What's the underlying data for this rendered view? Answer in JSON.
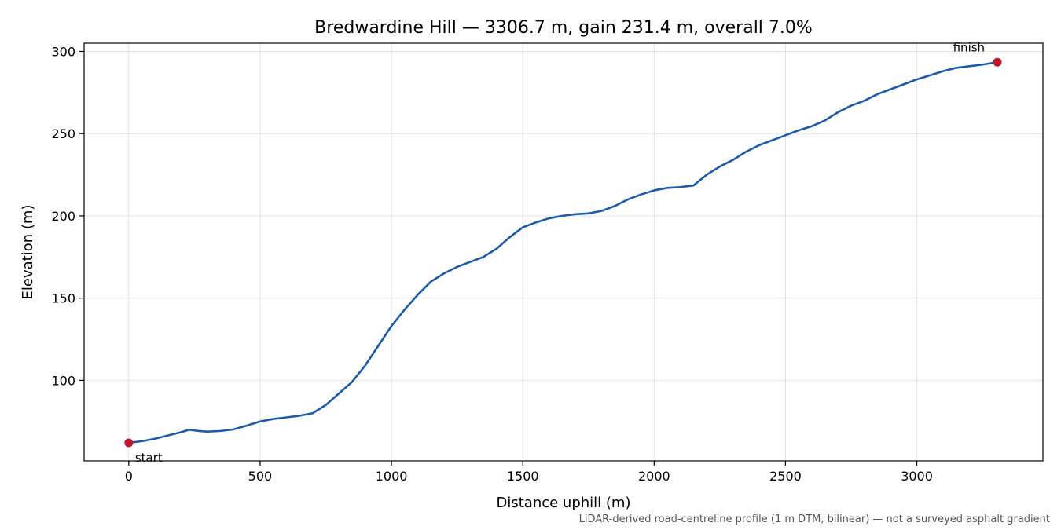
{
  "chart_data": {
    "type": "line",
    "title": "Bredwardine Hill — 3306.7 m, gain 231.4 m, overall 7.0%",
    "xlabel": "Distance uphill (m)",
    "ylabel": "Elevation (m)",
    "xlim": [
      -170,
      3480
    ],
    "ylim": [
      51,
      305
    ],
    "xticks": [
      0,
      500,
      1000,
      1500,
      2000,
      2500,
      3000
    ],
    "yticks": [
      100,
      150,
      200,
      250,
      300
    ],
    "grid": true,
    "line_color": "#1f5aa8",
    "marker_color": "#c0192b",
    "note": "LiDAR-derived road-centreline profile (1 m DTM, bilinear) — not a surveyed asphalt gradient",
    "series": [
      {
        "x": [
          0,
          50,
          100,
          150,
          200,
          230,
          250,
          280,
          300,
          350,
          400,
          450,
          500,
          550,
          600,
          650,
          700,
          750,
          800,
          850,
          900,
          950,
          1000,
          1050,
          1100,
          1150,
          1200,
          1250,
          1300,
          1350,
          1400,
          1450,
          1500,
          1550,
          1600,
          1650,
          1700,
          1750,
          1800,
          1850,
          1900,
          1950,
          2000,
          2050,
          2100,
          2150,
          2200,
          2250,
          2300,
          2350,
          2400,
          2450,
          2500,
          2550,
          2600,
          2650,
          2700,
          2750,
          2800,
          2850,
          2900,
          2950,
          3000,
          3050,
          3100,
          3150,
          3200,
          3250,
          3306.7
        ],
        "y": [
          62.0,
          63.0,
          64.5,
          66.5,
          68.5,
          70.0,
          69.5,
          69.0,
          68.8,
          69.2,
          70.2,
          72.5,
          75.0,
          76.5,
          77.5,
          78.5,
          80.0,
          85.0,
          92.0,
          99.0,
          109.0,
          121.0,
          133.0,
          143.0,
          152.0,
          160.0,
          165.0,
          169.0,
          172.0,
          175.0,
          180.0,
          187.0,
          193.0,
          196.0,
          198.5,
          200.0,
          201.0,
          201.5,
          203.0,
          206.0,
          210.0,
          213.0,
          215.5,
          217.0,
          217.5,
          218.5,
          225.0,
          230.0,
          234.0,
          239.0,
          243.0,
          246.0,
          249.0,
          252.0,
          254.5,
          258.0,
          263.0,
          267.0,
          270.0,
          274.0,
          277.0,
          280.0,
          283.0,
          285.5,
          288.0,
          290.0,
          291.0,
          292.0,
          293.4
        ]
      }
    ],
    "annotations": [
      {
        "text": "start",
        "x": 0,
        "y": 62.0
      },
      {
        "text": "finish",
        "x": 3306.7,
        "y": 293.4
      }
    ]
  }
}
